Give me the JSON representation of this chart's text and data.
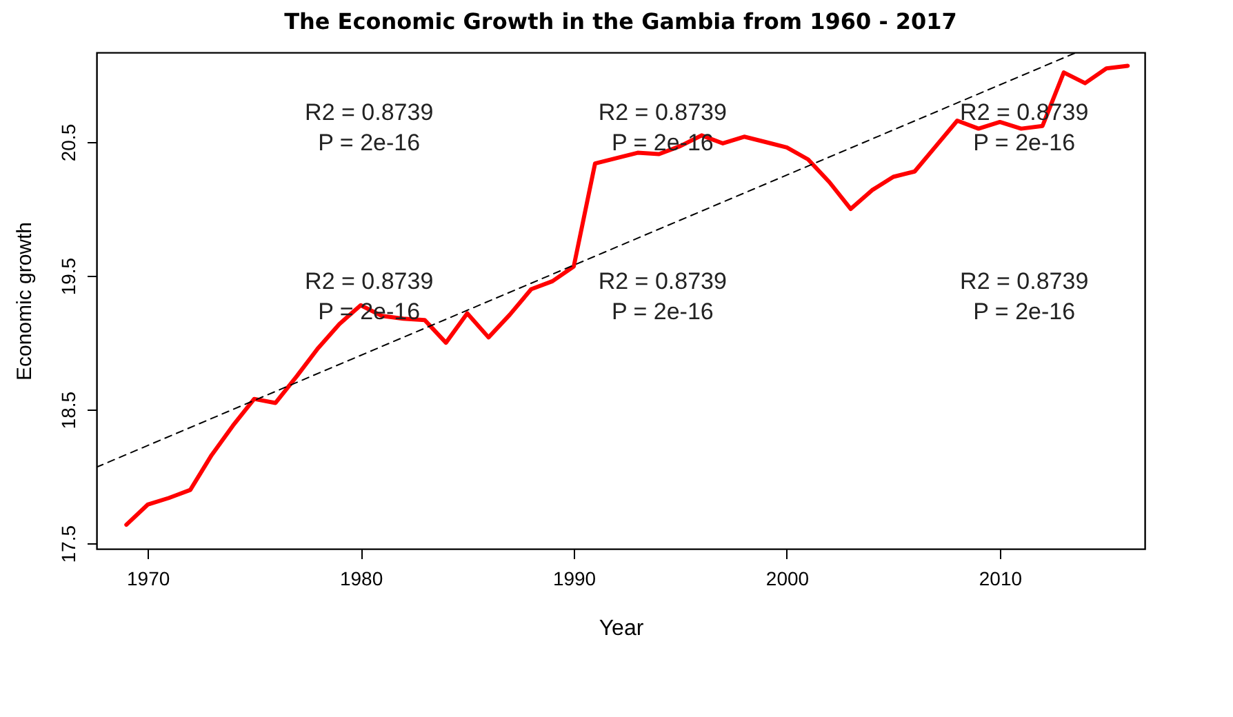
{
  "chart_data": {
    "type": "line",
    "title": "The Economic Growth in the Gambia from 1960 - 2017",
    "xlabel": "Year",
    "ylabel": "Economic growth",
    "xlim": [
      1967.6,
      2016.8
    ],
    "ylim": [
      17.46,
      21.17
    ],
    "xticks": [
      1970,
      1980,
      1990,
      2000,
      2010
    ],
    "yticks": [
      17.5,
      18.5,
      19.5,
      20.5
    ],
    "grid": false,
    "series": [
      {
        "color": "#ff0000",
        "line_style": "solid",
        "x": [
          1969,
          1970,
          1971,
          1972,
          1973,
          1974,
          1975,
          1976,
          1977,
          1978,
          1979,
          1980,
          1981,
          1982,
          1983,
          1984,
          1985,
          1986,
          1987,
          1988,
          1989,
          1990,
          1991,
          1992,
          1993,
          1994,
          1995,
          1996,
          1997,
          1998,
          1999,
          2000,
          2001,
          2002,
          2003,
          2004,
          2005,
          2006,
          2007,
          2008,
          2009,
          2010,
          2011,
          2012,
          2013,
          2014,
          2015,
          2016
        ],
        "values": [
          17.64,
          17.79,
          17.84,
          17.9,
          18.16,
          18.38,
          18.58,
          18.55,
          18.75,
          18.96,
          19.14,
          19.28,
          19.2,
          19.18,
          19.17,
          19.0,
          19.22,
          19.04,
          19.21,
          19.4,
          19.46,
          19.57,
          20.34,
          20.38,
          20.42,
          20.41,
          20.47,
          20.55,
          20.49,
          20.54,
          20.5,
          20.46,
          20.37,
          20.2,
          20.0,
          20.14,
          20.24,
          20.28,
          20.47,
          20.66,
          20.6,
          20.65,
          20.6,
          20.62,
          21.02,
          20.94,
          21.05,
          21.07
        ]
      },
      {
        "type": "line",
        "color": "#000000",
        "line_style": "dashed",
        "x": [
          1967.6,
          2013.6
        ],
        "values": [
          18.07,
          21.17
        ]
      }
    ],
    "annotations": [
      "R2 =  0.8739\nP = 2e-16",
      "R2 =  0.8739\nP = 2e-16",
      "R2 =  0.8739\nP = 2e-16",
      "R2 =  0.8739\nP = 2e-16",
      "R2 =  0.8739\nP = 2e-16",
      "R2 =  0.8739\nP = 2e-16"
    ]
  }
}
